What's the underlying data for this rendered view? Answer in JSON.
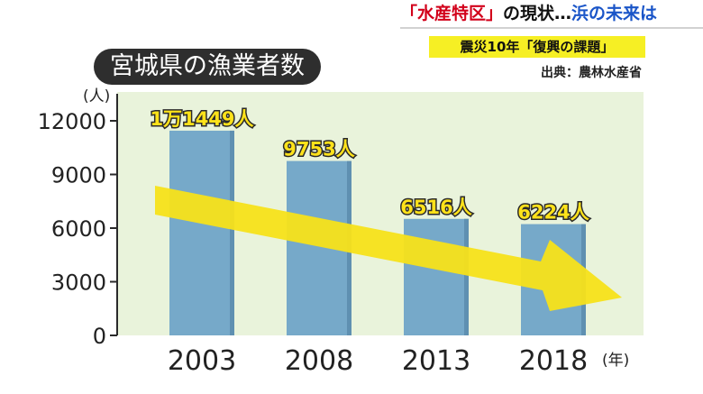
{
  "header": {
    "banner_part1": "「水産特区」",
    "banner_part2": "の現状…",
    "banner_part3": "浜の未来は",
    "subtitle": "震災10年「復興の課題」",
    "source": "出典：農林水産省"
  },
  "colors": {
    "plot_bg": "#e9f3db",
    "bar": "#76a9c9",
    "arrow": "#f7e21a",
    "title_bg": "#2e2e2e"
  },
  "chart_data": {
    "type": "bar",
    "title": "宮城県の漁業者数",
    "ylabel": "(人)",
    "xlabel": "(年)",
    "categories": [
      "2003",
      "2008",
      "2013",
      "2018"
    ],
    "values": [
      11449,
      9753,
      6516,
      6224
    ],
    "data_labels": [
      "1万1449人",
      "9753人",
      "6516人",
      "6224人"
    ],
    "ylim": [
      0,
      12000
    ],
    "yticks": [
      "0",
      "3000",
      "6000",
      "9000",
      "12000"
    ],
    "grid": false,
    "annotation": "yellow-down-arrow"
  }
}
